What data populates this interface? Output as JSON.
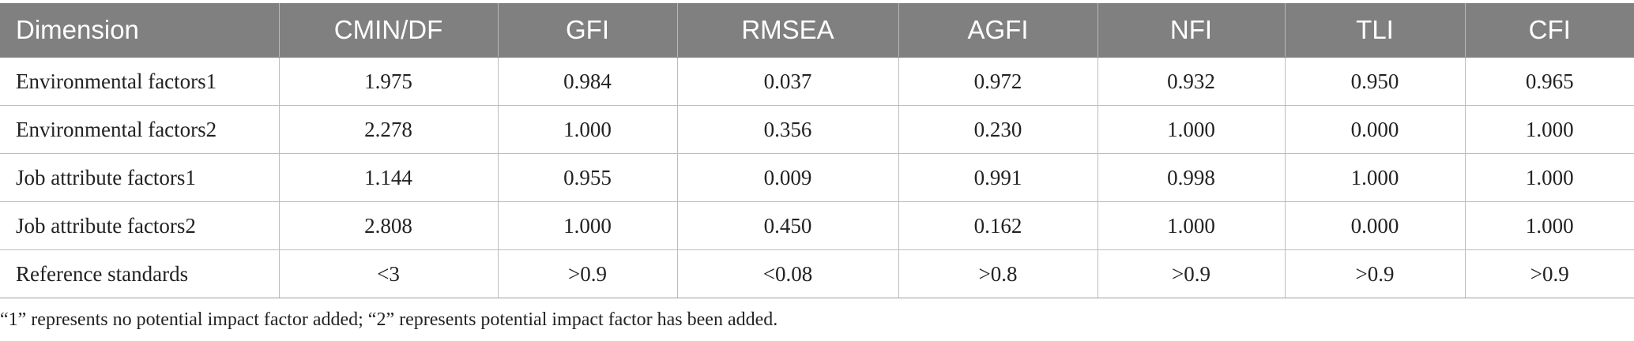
{
  "table": {
    "headers": [
      "Dimension",
      "CMIN/DF",
      "GFI",
      "RMSEA",
      "AGFI",
      "NFI",
      "TLI",
      "CFI"
    ],
    "rows": [
      [
        "Environmental factors1",
        "1.975",
        "0.984",
        "0.037",
        "0.972",
        "0.932",
        "0.950",
        "0.965"
      ],
      [
        "Environmental factors2",
        "2.278",
        "1.000",
        "0.356",
        "0.230",
        "1.000",
        "0.000",
        "1.000"
      ],
      [
        "Job attribute factors1",
        "1.144",
        "0.955",
        "0.009",
        "0.991",
        "0.998",
        "1.000",
        "1.000"
      ],
      [
        "Job attribute factors2",
        "2.808",
        "1.000",
        "0.450",
        "0.162",
        "1.000",
        "0.000",
        "1.000"
      ],
      [
        "Reference standards",
        "<3",
        ">0.9",
        "<0.08",
        ">0.8",
        ">0.9",
        ">0.9",
        ">0.9"
      ]
    ]
  },
  "footnote": "“1” represents no potential impact factor added; “2” represents potential impact factor has been added.",
  "colors": {
    "header_bg": "#808080",
    "header_text": "#ffffff",
    "grid": "#bdbdbd"
  }
}
